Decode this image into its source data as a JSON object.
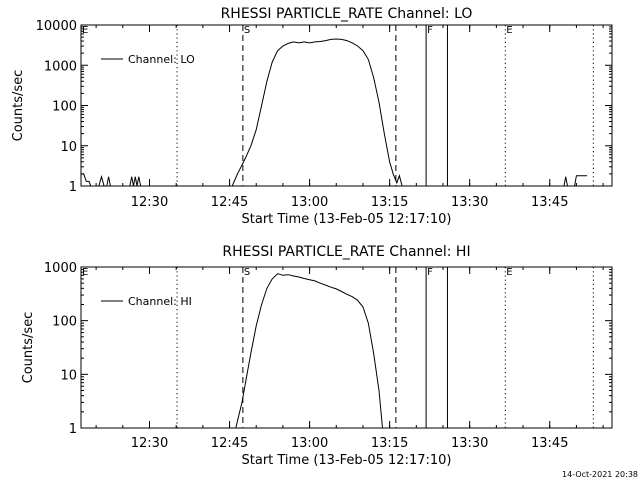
{
  "timestamp": "14-Oct-2021 20:38",
  "chart_data": [
    {
      "type": "line",
      "title": "RHESSI PARTICLE_RATE Channel: LO",
      "xlabel": "Start Time (13-Feb-05 12:17:10)",
      "ylabel": "Counts/sec",
      "yscale": "log",
      "xlim": [
        "12:17:10",
        "13:56:40"
      ],
      "ylim": [
        1,
        10000
      ],
      "x_tick_labels": [
        "12:30",
        "12:45",
        "13:00",
        "13:15",
        "13:30",
        "13:45"
      ],
      "y_tick_labels": [
        "1",
        "10",
        "100",
        "1000",
        "10000"
      ],
      "legend": {
        "position": "top-left",
        "entries": [
          "Channel: LO"
        ]
      },
      "markers": [
        {
          "label": "E",
          "time": "12:17:10",
          "style": "dotted"
        },
        {
          "label": "",
          "time": "12:35:10",
          "style": "dotted"
        },
        {
          "label": "S",
          "time": "12:47:30",
          "style": "dashed"
        },
        {
          "label": "",
          "time": "13:16:10",
          "style": "dashed"
        },
        {
          "label": "F",
          "time": "13:21:50",
          "style": "solid"
        },
        {
          "label": "",
          "time": "13:25:50",
          "style": "solid"
        },
        {
          "label": "E",
          "time": "13:36:40",
          "style": "dotted"
        },
        {
          "label": "",
          "time": "13:53:10",
          "style": "dotted"
        }
      ],
      "series": [
        {
          "name": "Channel: LO",
          "points": [
            [
              "12:17:10",
              2
            ],
            [
              "12:17:40",
              2
            ],
            [
              "12:18:10",
              1.3
            ],
            [
              "12:18:40",
              1.3
            ],
            [
              "12:19:00",
              1
            ],
            [
              "12:20:30",
              1
            ],
            [
              "12:21:00",
              1.7
            ],
            [
              "12:21:30",
              1
            ],
            [
              "12:22:00",
              1
            ],
            [
              "12:22:20",
              1.7
            ],
            [
              "12:22:40",
              1
            ],
            [
              "12:26:20",
              1
            ],
            [
              "12:26:40",
              1.7
            ],
            [
              "12:27:00",
              1
            ],
            [
              "12:27:20",
              1.7
            ],
            [
              "12:27:40",
              1
            ],
            [
              "12:28:00",
              1.7
            ],
            [
              "12:28:20",
              1
            ],
            [
              "12:45:30",
              1
            ],
            [
              "12:46:30",
              2
            ],
            [
              "12:47:10",
              3
            ],
            [
              "12:48:00",
              5
            ],
            [
              "12:49:00",
              10
            ],
            [
              "12:50:00",
              25
            ],
            [
              "12:51:00",
              100
            ],
            [
              "12:52:00",
              400
            ],
            [
              "12:53:00",
              1200
            ],
            [
              "12:54:00",
              2300
            ],
            [
              "12:55:00",
              3000
            ],
            [
              "12:56:00",
              3500
            ],
            [
              "12:57:00",
              3800
            ],
            [
              "12:58:00",
              3600
            ],
            [
              "12:59:00",
              3800
            ],
            [
              "13:00:00",
              3600
            ],
            [
              "13:01:00",
              3800
            ],
            [
              "13:02:00",
              3900
            ],
            [
              "13:03:00",
              4100
            ],
            [
              "13:04:00",
              4400
            ],
            [
              "13:05:00",
              4500
            ],
            [
              "13:06:00",
              4400
            ],
            [
              "13:07:00",
              4100
            ],
            [
              "13:08:00",
              3600
            ],
            [
              "13:09:00",
              3000
            ],
            [
              "13:10:00",
              2300
            ],
            [
              "13:11:00",
              1400
            ],
            [
              "13:12:00",
              500
            ],
            [
              "13:13:00",
              120
            ],
            [
              "13:14:00",
              20
            ],
            [
              "13:15:00",
              4
            ],
            [
              "13:15:40",
              2
            ],
            [
              "13:16:20",
              1.2
            ],
            [
              "13:16:50",
              1.8
            ],
            [
              "13:17:20",
              1
            ],
            [
              "13:47:40",
              1
            ],
            [
              "13:48:00",
              1.7
            ],
            [
              "13:48:20",
              1
            ],
            [
              "13:49:40",
              1
            ],
            [
              "13:50:00",
              1.8
            ],
            [
              "13:51:00",
              1.8
            ],
            [
              "13:52:00",
              1.8
            ]
          ]
        }
      ]
    },
    {
      "type": "line",
      "title": "RHESSI PARTICLE_RATE Channel: HI",
      "xlabel": "Start Time (13-Feb-05 12:17:10)",
      "ylabel": "Counts/sec",
      "yscale": "log",
      "xlim": [
        "12:17:10",
        "13:56:40"
      ],
      "ylim": [
        1,
        1000
      ],
      "x_tick_labels": [
        "12:30",
        "12:45",
        "13:00",
        "13:15",
        "13:30",
        "13:45"
      ],
      "y_tick_labels": [
        "1",
        "10",
        "100",
        "1000"
      ],
      "legend": {
        "position": "top-left",
        "entries": [
          "Channel: HI"
        ]
      },
      "markers": [
        {
          "label": "E",
          "time": "12:17:10",
          "style": "dotted"
        },
        {
          "label": "",
          "time": "12:35:10",
          "style": "dotted"
        },
        {
          "label": "S",
          "time": "12:47:30",
          "style": "dashed"
        },
        {
          "label": "",
          "time": "13:16:10",
          "style": "dashed"
        },
        {
          "label": "F",
          "time": "13:21:50",
          "style": "solid"
        },
        {
          "label": "",
          "time": "13:25:50",
          "style": "solid"
        },
        {
          "label": "E",
          "time": "13:36:40",
          "style": "dotted"
        },
        {
          "label": "",
          "time": "13:53:10",
          "style": "dotted"
        }
      ],
      "series": [
        {
          "name": "Channel: HI",
          "points": [
            [
              "12:46:10",
              1
            ],
            [
              "12:46:40",
              1.6
            ],
            [
              "12:47:20",
              3
            ],
            [
              "12:48:00",
              7
            ],
            [
              "12:49:00",
              25
            ],
            [
              "12:50:00",
              80
            ],
            [
              "12:51:00",
              200
            ],
            [
              "12:52:00",
              400
            ],
            [
              "12:53:00",
              600
            ],
            [
              "12:54:00",
              750
            ],
            [
              "12:55:00",
              700
            ],
            [
              "12:56:00",
              720
            ],
            [
              "12:57:00",
              680
            ],
            [
              "12:58:00",
              650
            ],
            [
              "12:59:00",
              610
            ],
            [
              "13:00:00",
              580
            ],
            [
              "13:01:00",
              550
            ],
            [
              "13:02:00",
              500
            ],
            [
              "13:03:00",
              460
            ],
            [
              "13:04:00",
              420
            ],
            [
              "13:05:00",
              390
            ],
            [
              "13:06:00",
              350
            ],
            [
              "13:07:00",
              310
            ],
            [
              "13:08:00",
              280
            ],
            [
              "13:09:00",
              240
            ],
            [
              "13:10:00",
              180
            ],
            [
              "13:11:00",
              90
            ],
            [
              "13:12:00",
              25
            ],
            [
              "13:13:00",
              5
            ],
            [
              "13:13:40",
              1
            ]
          ]
        }
      ]
    }
  ]
}
